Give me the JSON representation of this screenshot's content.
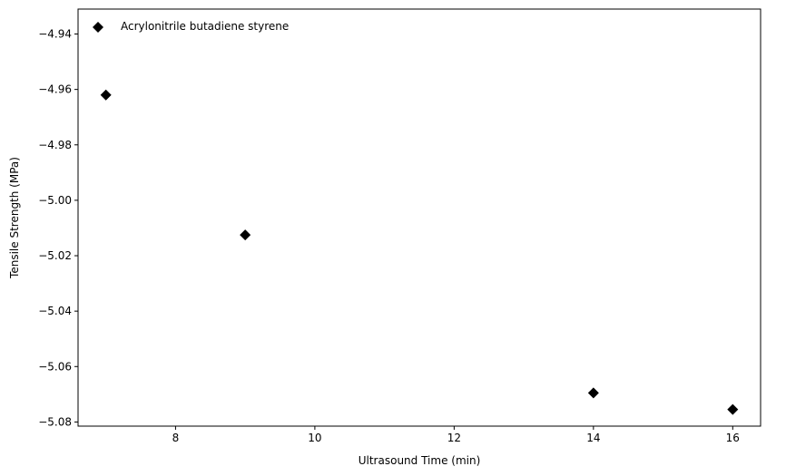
{
  "chart_data": {
    "type": "scatter",
    "xlabel": "Ultrasound Time (min)",
    "ylabel": "Tensile Strength (MPa)",
    "xlim": [
      6.6,
      16.4
    ],
    "ylim": [
      -5.0815,
      -4.931
    ],
    "x_ticks": [
      8,
      10,
      12,
      14,
      16
    ],
    "x_tick_labels": [
      "8",
      "10",
      "12",
      "14",
      "16"
    ],
    "y_ticks": [
      -4.94,
      -4.96,
      -4.98,
      -5.0,
      -5.02,
      -5.04,
      -5.06,
      -5.08
    ],
    "y_tick_labels": [
      "−4.94",
      "−4.96",
      "−4.98",
      "−5.00",
      "−5.02",
      "−5.04",
      "−5.06",
      "−5.08"
    ],
    "grid": false,
    "legend_position": "upper-left",
    "series": [
      {
        "name": "Acrylonitrile butadiene styrene",
        "marker": "diamond",
        "color": "#000000",
        "x": [
          7,
          9,
          14,
          16
        ],
        "y": [
          -4.962,
          -5.0125,
          -5.0695,
          -5.0755
        ]
      }
    ]
  }
}
